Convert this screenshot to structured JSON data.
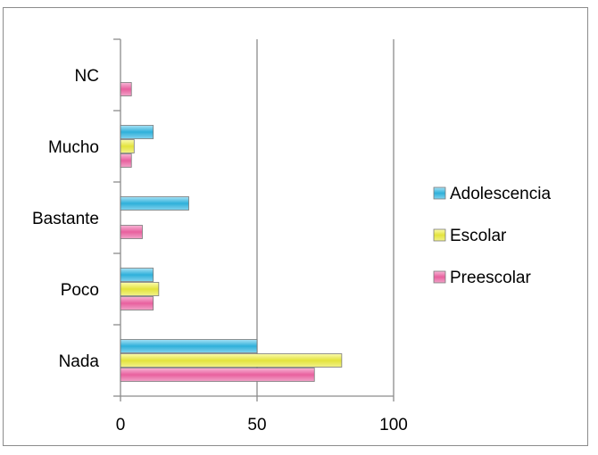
{
  "chart_data": {
    "type": "bar",
    "orientation": "horizontal",
    "categories": [
      "Nada",
      "Poco",
      "Bastante",
      "Mucho",
      "NC"
    ],
    "series": [
      {
        "name": "Preescolar",
        "values": [
          71,
          12,
          8,
          4,
          4
        ],
        "color": "#e8609e"
      },
      {
        "name": "Escolar",
        "values": [
          81,
          14,
          0,
          5,
          0
        ],
        "color": "#e0e040"
      },
      {
        "name": "Adolescencia",
        "values": [
          50,
          12,
          25,
          12,
          0
        ],
        "color": "#34b3dc"
      }
    ],
    "legend_order": [
      "Adolescencia",
      "Escolar",
      "Preescolar"
    ],
    "xticks": [
      "0",
      "50",
      "100"
    ],
    "xlim": [
      0,
      100
    ],
    "grid": "vertical",
    "legend": "right",
    "title": "",
    "xlabel": "",
    "ylabel": ""
  }
}
